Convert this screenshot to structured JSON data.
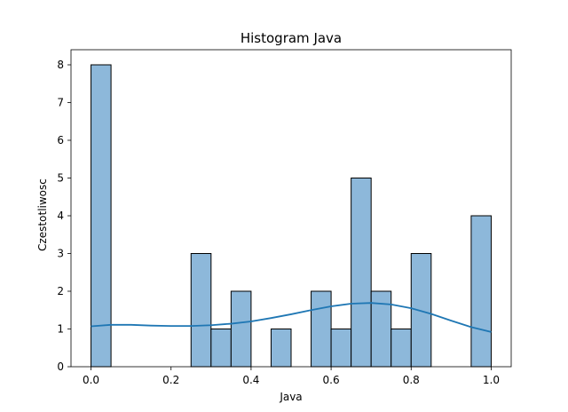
{
  "chart_data": {
    "type": "bar",
    "title": "Histogram Java",
    "xlabel": "Java",
    "ylabel": "Czestotliwosc",
    "xlim": [
      -0.05,
      1.05
    ],
    "ylim": [
      0,
      8.4
    ],
    "bin_width": 0.05,
    "bins": [
      {
        "start": 0.0,
        "count": 8
      },
      {
        "start": 0.25,
        "count": 3
      },
      {
        "start": 0.3,
        "count": 1
      },
      {
        "start": 0.35,
        "count": 2
      },
      {
        "start": 0.45,
        "count": 1
      },
      {
        "start": 0.55,
        "count": 2
      },
      {
        "start": 0.6,
        "count": 1
      },
      {
        "start": 0.65,
        "count": 5
      },
      {
        "start": 0.7,
        "count": 2
      },
      {
        "start": 0.75,
        "count": 1
      },
      {
        "start": 0.8,
        "count": 3
      },
      {
        "start": 0.95,
        "count": 4
      }
    ],
    "kde": {
      "x": [
        0.0,
        0.05,
        0.1,
        0.15,
        0.2,
        0.25,
        0.3,
        0.35,
        0.4,
        0.45,
        0.5,
        0.55,
        0.6,
        0.65,
        0.7,
        0.75,
        0.8,
        0.85,
        0.9,
        0.95,
        1.0
      ],
      "y": [
        1.07,
        1.11,
        1.11,
        1.09,
        1.08,
        1.08,
        1.1,
        1.14,
        1.2,
        1.29,
        1.39,
        1.5,
        1.6,
        1.67,
        1.69,
        1.65,
        1.55,
        1.4,
        1.22,
        1.05,
        0.92
      ]
    },
    "xticks": [
      0.0,
      0.2,
      0.4,
      0.6,
      0.8,
      1.0
    ],
    "xtick_labels": [
      "0.0",
      "0.2",
      "0.4",
      "0.6",
      "0.8",
      "1.0"
    ],
    "yticks": [
      0,
      1,
      2,
      3,
      4,
      5,
      6,
      7,
      8
    ],
    "ytick_labels": [
      "0",
      "1",
      "2",
      "3",
      "4",
      "5",
      "6",
      "7",
      "8"
    ],
    "colors": {
      "bar_fill": "#8db8da",
      "bar_edge": "#000000",
      "kde_line": "#1f77b4",
      "axes": "#000000"
    },
    "grid": false
  }
}
